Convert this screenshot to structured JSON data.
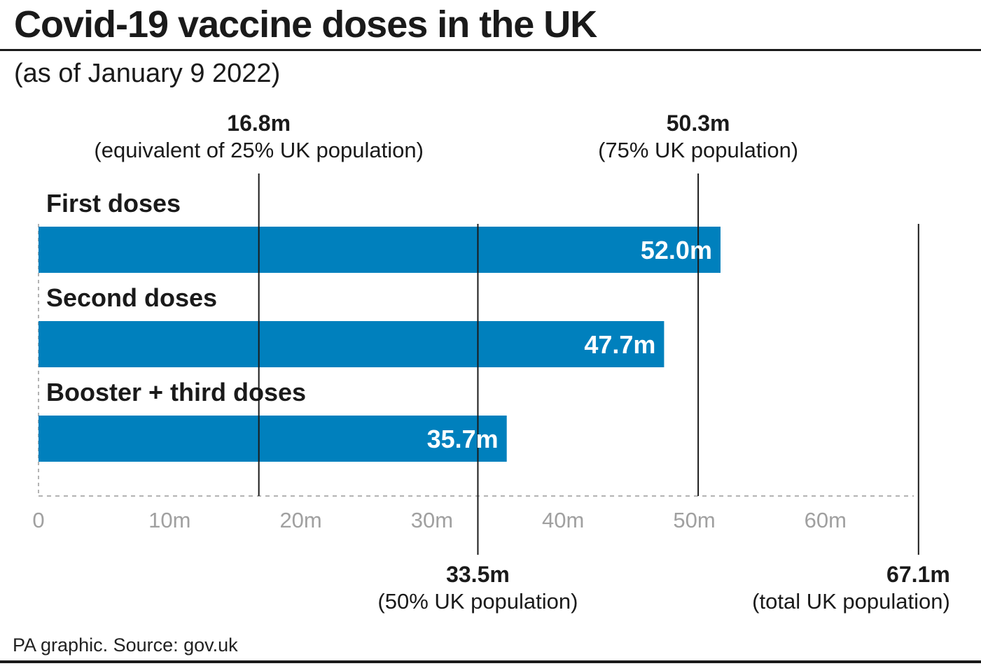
{
  "header": {
    "title": "Covid-19 vaccine doses in the UK",
    "subtitle": "(as of January 9 2022)"
  },
  "footer": {
    "source": "PA graphic. Source: gov.uk"
  },
  "colors": {
    "bar": "#0080bd",
    "text": "#1a1a1a",
    "tick_text": "#a0a0a0",
    "grid": "#b3b3b3"
  },
  "chart_data": {
    "type": "bar",
    "orientation": "horizontal",
    "categories": [
      "First doses",
      "Second doses",
      "Booster + third doses"
    ],
    "values": [
      52.0,
      47.7,
      35.7
    ],
    "value_labels": [
      "52.0m",
      "47.7m",
      "35.7m"
    ],
    "unit": "m",
    "xlim": [
      0,
      67.1
    ],
    "ticks": [
      0,
      10,
      20,
      30,
      40,
      50,
      60
    ],
    "tick_labels": [
      "0",
      "10m",
      "20m",
      "30m",
      "40m",
      "50m",
      "60m"
    ],
    "grid": false,
    "reference_lines": [
      {
        "value": 16.8,
        "label": "16.8m",
        "description": "(equivalent of 25% UK population)",
        "position": "top"
      },
      {
        "value": 50.3,
        "label": "50.3m",
        "description": "(75% UK population)",
        "position": "top"
      },
      {
        "value": 33.5,
        "label": "33.5m",
        "description": "(50% UK population)",
        "position": "bottom"
      },
      {
        "value": 67.1,
        "label": "67.1m",
        "description": "(total UK population)",
        "position": "bottom"
      }
    ]
  }
}
